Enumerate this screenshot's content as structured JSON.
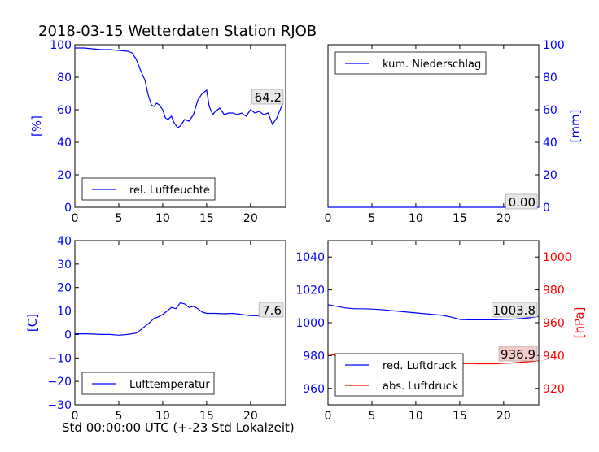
{
  "title": "2018-03-15 Wetterdaten Station RJOB",
  "xlabel": "Std 00:00:00 UTC (+-23 Std Lokalzeit)",
  "colors": {
    "blue": "#0000ff",
    "red": "#ff0000",
    "label_bg_red": "#f4cccc",
    "label_bg_grey": "#e8e8e8"
  },
  "chart_data": [
    {
      "id": "humidity",
      "type": "line",
      "ylabel": "[%]",
      "xlim": [
        0,
        24
      ],
      "ylim": [
        0,
        100
      ],
      "xticks": [
        "0",
        "5",
        "10",
        "15",
        "20"
      ],
      "yticks": [
        "0",
        "20",
        "40",
        "60",
        "80",
        "100"
      ],
      "legend": {
        "position": "bottom-left",
        "entries": [
          "rel. Luftfeuchte"
        ]
      },
      "last_value_label": "64.2",
      "series": [
        {
          "color": "#0000ff",
          "x": [
            0,
            1,
            2,
            3,
            4,
            5,
            6,
            6.5,
            7,
            7.5,
            8,
            8.3,
            8.7,
            9,
            9.3,
            9.6,
            10,
            10.3,
            10.6,
            11,
            11.3,
            11.7,
            12,
            12.5,
            13,
            13.5,
            14,
            14.5,
            15,
            15.3,
            15.7,
            16,
            16.5,
            17,
            17.5,
            18,
            18.5,
            19,
            19.5,
            20,
            20.5,
            21,
            21.5,
            22,
            22.5,
            23,
            23.3,
            23.7
          ],
          "y": [
            98,
            98,
            97.5,
            97,
            97,
            96.5,
            96,
            95,
            91,
            84,
            78,
            70,
            63,
            62,
            64,
            63,
            60,
            55,
            54,
            56,
            52,
            49,
            50,
            54,
            53,
            57,
            66,
            70,
            72,
            62,
            57,
            59,
            61,
            57,
            58,
            58,
            57,
            58,
            56,
            60,
            58,
            59,
            57,
            58,
            51,
            55,
            59,
            64.2
          ]
        }
      ]
    },
    {
      "id": "precip",
      "type": "line",
      "ylabel": "[mm]",
      "xlim": [
        0,
        24
      ],
      "ylim": [
        0,
        100
      ],
      "xticks": [
        "0",
        "5",
        "10",
        "15",
        "20"
      ],
      "yticks": [
        "0",
        "20",
        "40",
        "60",
        "80",
        "100"
      ],
      "legend": {
        "position": "top-left",
        "entries": [
          "kum. Niederschlag"
        ]
      },
      "last_value_label": "0.00",
      "series": [
        {
          "color": "#0000ff",
          "x": [
            0,
            24
          ],
          "y": [
            0,
            0
          ]
        }
      ]
    },
    {
      "id": "temperature",
      "type": "line",
      "ylabel": "[C]",
      "xlim": [
        0,
        24
      ],
      "ylim": [
        -30,
        40
      ],
      "xticks": [
        "0",
        "5",
        "10",
        "15",
        "20"
      ],
      "yticks": [
        "−30",
        "−20",
        "−10",
        "0",
        "10",
        "20",
        "30",
        "40"
      ],
      "legend": {
        "position": "bottom-left",
        "entries": [
          "Lufttemperatur"
        ]
      },
      "last_value_label": "7.6",
      "series": [
        {
          "color": "#0000ff",
          "x": [
            0,
            1,
            2,
            3,
            4,
            5,
            6,
            7,
            7.5,
            8,
            8.5,
            9,
            9.5,
            10,
            10.5,
            11,
            11.5,
            12,
            12.5,
            13,
            13.5,
            14,
            14.5,
            15,
            16,
            17,
            18,
            19,
            20,
            21,
            22,
            23,
            23.7
          ],
          "y": [
            0.3,
            0.3,
            0.2,
            0,
            0,
            -0.3,
            0,
            0.6,
            2,
            3.5,
            5,
            6.8,
            7.5,
            8.5,
            10,
            11.5,
            11,
            13.5,
            13,
            11.5,
            12,
            11,
            9.5,
            9,
            9,
            8.8,
            9,
            8.5,
            8,
            8,
            8.2,
            7.8,
            7.6
          ]
        }
      ]
    },
    {
      "id": "pressure",
      "type": "line",
      "ylabel": "[hPa]",
      "xlim": [
        0,
        24
      ],
      "ylim_left": [
        950,
        1050
      ],
      "ylim_right": [
        910,
        1010
      ],
      "xticks": [
        "0",
        "5",
        "10",
        "15",
        "20"
      ],
      "yticks_left": [
        "960",
        "980",
        "1000",
        "1020",
        "1040"
      ],
      "yticks_right": [
        "920",
        "940",
        "960",
        "980",
        "1000"
      ],
      "legend": {
        "position": "bottom-left",
        "entries": [
          "red. Luftdruck",
          "abs. Luftdruck"
        ]
      },
      "last_value_labels": [
        "1003.8",
        "936.9"
      ],
      "series": [
        {
          "name": "red. Luftdruck",
          "color": "#0000ff",
          "axis": "left",
          "x": [
            0,
            1,
            2,
            3,
            4,
            5,
            6,
            7,
            8,
            9,
            10,
            11,
            12,
            13,
            14,
            15,
            16,
            17,
            18,
            19,
            20,
            21,
            22,
            23,
            24
          ],
          "y": [
            1011,
            1010,
            1009,
            1008.5,
            1008.5,
            1008.3,
            1008,
            1007.5,
            1007,
            1006.5,
            1006,
            1005.5,
            1005,
            1004.5,
            1003.5,
            1002,
            1001.8,
            1001.8,
            1001.8,
            1001.8,
            1002,
            1002.2,
            1002.5,
            1003,
            1003.8
          ]
        },
        {
          "name": "abs. Luftdruck",
          "color": "#ff0000",
          "axis": "right",
          "x": [
            0,
            1,
            2,
            3,
            4,
            5,
            6,
            7,
            8,
            9,
            10,
            11,
            12,
            13,
            14,
            15,
            16,
            17,
            18,
            19,
            20,
            21,
            22,
            23,
            24
          ],
          "y": [
            941,
            940,
            939.5,
            939,
            939,
            938.8,
            938.5,
            938.3,
            938,
            938.3,
            938,
            938.5,
            938,
            937,
            935.5,
            935,
            935.2,
            935,
            935,
            935,
            935.3,
            935.5,
            936,
            936.3,
            936.9
          ]
        }
      ]
    }
  ]
}
